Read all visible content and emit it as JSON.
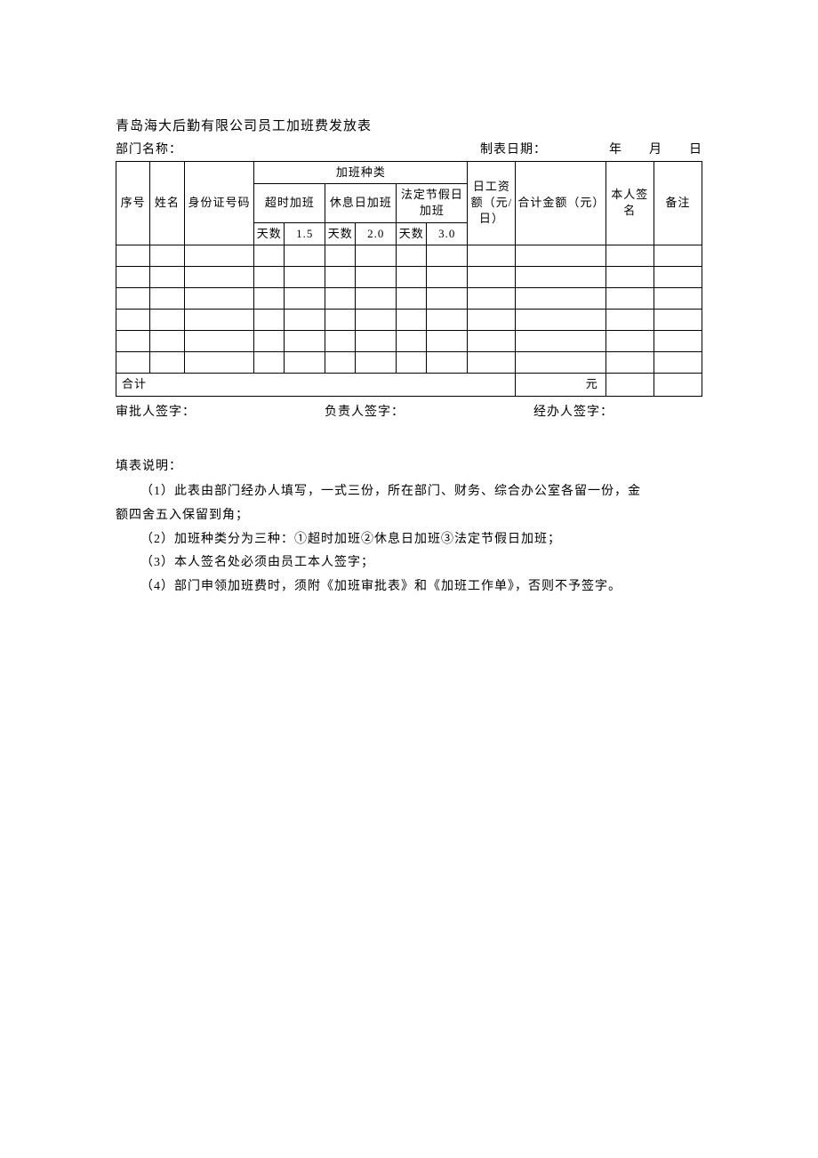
{
  "title": "青岛海大后勤有限公司员工加班费发放表",
  "meta": {
    "dept_label": "部门名称：",
    "date_label": "制表日期：",
    "year_unit": "年",
    "month_unit": "月",
    "day_unit": "日"
  },
  "headers": {
    "seq": "序号",
    "name": "姓名",
    "id": "身份证号码",
    "ot_category": "加班种类",
    "ot_overtime": "超时加班",
    "ot_restday": "休息日加班",
    "ot_holiday": "法定节假日加班",
    "days": "天数",
    "rate1": "1.5",
    "rate2": "2.0",
    "rate3": "3.0",
    "daily_wage": "日工资额（元/日）",
    "total": "合计金额（元）",
    "sign": "本人签名",
    "remark": "备注"
  },
  "rows": [
    {},
    {},
    {},
    {},
    {},
    {}
  ],
  "sum": {
    "label": "合计",
    "unit": "元"
  },
  "signatures": {
    "approver": "审批人签字：",
    "manager": "负责人签字：",
    "handler": "经办人签字："
  },
  "instructions": {
    "heading": "填表说明：",
    "line1a": "（1）此表由部门经办人填写，一式三份，所在部门、财务、综合办公室各留一份，金",
    "line1b": "额四舍五入保留到角；",
    "line2": "（2）加班种类分为三种：①超时加班②休息日加班③法定节假日加班；",
    "line3": "（3）本人签名处必须由员工本人签字；",
    "line4": "（4）部门申领加班费时，须附《加班审批表》和《加班工作单》，否则不予签字。"
  },
  "col_widths": {
    "seq": 34,
    "name": 34,
    "id": 70,
    "days": 30,
    "rate": 41,
    "wage": 48,
    "total": 90,
    "sign": 48,
    "remark": 48
  }
}
